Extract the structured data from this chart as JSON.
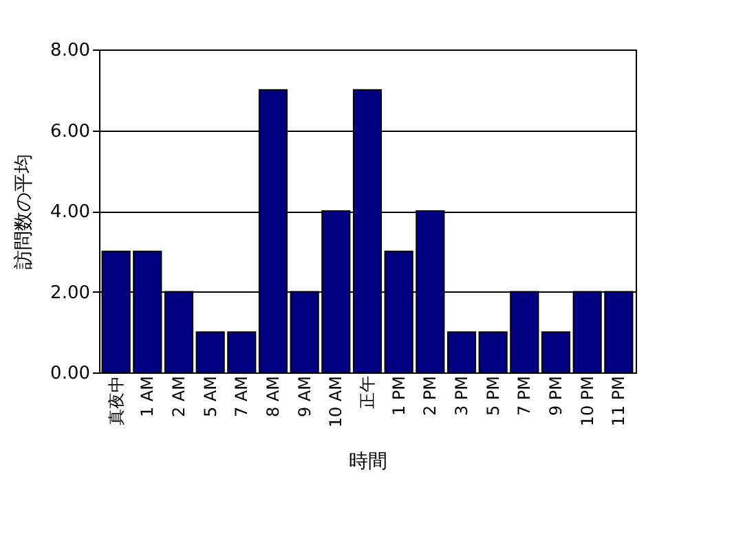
{
  "chart_data": {
    "type": "bar",
    "xlabel": "時間",
    "ylabel": "訪問数の平均",
    "categories": [
      "真夜中",
      "1 AM",
      "2 AM",
      "5 AM",
      "7 AM",
      "8 AM",
      "9 AM",
      "10 AM",
      "正午",
      "1 PM",
      "2 PM",
      "3 PM",
      "5 PM",
      "7 PM",
      "9 PM",
      "10 PM",
      "11 PM"
    ],
    "values": [
      3,
      3,
      2,
      1,
      1,
      7,
      2,
      4,
      7,
      3,
      4,
      1,
      1,
      2,
      1,
      2,
      2
    ],
    "color": "#000080",
    "ylim": [
      0,
      8
    ],
    "yticks": [
      {
        "value": 0,
        "label": "0.00"
      },
      {
        "value": 2,
        "label": "2.00"
      },
      {
        "value": 4,
        "label": "4.00"
      },
      {
        "value": 6,
        "label": "6.00"
      },
      {
        "value": 8,
        "label": "8.00"
      }
    ],
    "grid": "y"
  }
}
